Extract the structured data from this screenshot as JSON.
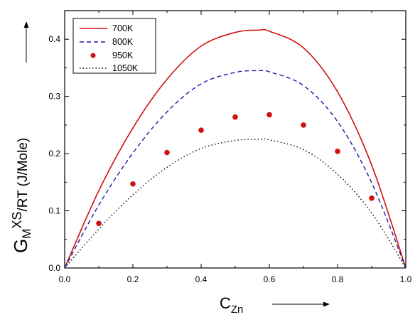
{
  "chart_data": {
    "type": "line",
    "xlabel": {
      "main": "C",
      "sub": "Zn"
    },
    "ylabel": {
      "g": "G",
      "m": "M",
      "xs": "XS",
      "rest": "/RT (J/Mole)"
    },
    "xlim": [
      0,
      1
    ],
    "ylim": [
      0,
      0.45
    ],
    "x_ticks": [
      0.0,
      0.2,
      0.4,
      0.6,
      0.8,
      1.0
    ],
    "x_tick_labels": [
      "0.0",
      "0.2",
      "0.4",
      "0.6",
      "0.8",
      "1.0"
    ],
    "y_ticks": [
      0.0,
      0.1,
      0.2,
      0.3,
      0.4
    ],
    "y_tick_labels": [
      "0.0",
      "0.1",
      "0.2",
      "0.3",
      "0.4"
    ],
    "grid": false,
    "legend_position": "top-left",
    "colors": {
      "red": "#d01010",
      "blue": "#1a1aa8",
      "black": "#000000"
    },
    "series": [
      {
        "name": "700K",
        "style": "solid-line",
        "color": "#d01010",
        "x": [
          0.0,
          0.1,
          0.2,
          0.3,
          0.4,
          0.5,
          0.57,
          0.6,
          0.7,
          0.8,
          0.9,
          1.0
        ],
        "y": [
          0.0,
          0.135,
          0.245,
          0.33,
          0.388,
          0.412,
          0.416,
          0.414,
          0.385,
          0.308,
          0.18,
          0.0
        ]
      },
      {
        "name": "800K",
        "style": "dashed-line",
        "color": "#1a1aa8",
        "x": [
          0.0,
          0.1,
          0.2,
          0.3,
          0.4,
          0.5,
          0.57,
          0.6,
          0.7,
          0.8,
          0.9,
          1.0
        ],
        "y": [
          0.0,
          0.11,
          0.201,
          0.273,
          0.322,
          0.342,
          0.345,
          0.343,
          0.319,
          0.256,
          0.149,
          0.0
        ]
      },
      {
        "name": "950K",
        "style": "dots",
        "color": "#d01010",
        "x": [
          0.1,
          0.2,
          0.3,
          0.4,
          0.5,
          0.6,
          0.7,
          0.8,
          0.9
        ],
        "y": [
          0.078,
          0.147,
          0.202,
          0.241,
          0.264,
          0.268,
          0.25,
          0.204,
          0.122
        ]
      },
      {
        "name": "1050K",
        "style": "dotted-line",
        "color": "#000000",
        "x": [
          0.0,
          0.1,
          0.2,
          0.3,
          0.4,
          0.5,
          0.57,
          0.6,
          0.7,
          0.8,
          0.9,
          1.0
        ],
        "y": [
          0.0,
          0.068,
          0.128,
          0.176,
          0.209,
          0.223,
          0.225,
          0.224,
          0.207,
          0.164,
          0.096,
          0.0
        ]
      }
    ]
  }
}
